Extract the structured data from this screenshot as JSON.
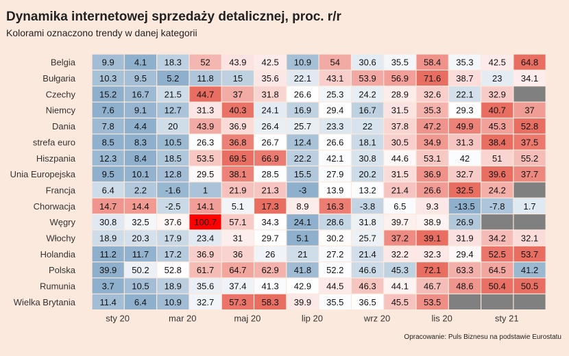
{
  "title": "Dynamika internetowej sprzedaży detalicznej, proc. r/r",
  "subtitle": "Kolorami oznaczono trendy w danej kategorii",
  "source": "Opracowanie: Puls Biznesu na podstawie Eurostatu",
  "chart_data": {
    "type": "heatmap",
    "rows": [
      "Belgia",
      "Bułgaria",
      "Czechy",
      "Niemcy",
      "Dania",
      "strefa euro",
      "Hiszpania",
      "Unia Europejska",
      "Francja",
      "Chorwacja",
      "Węgry",
      "Włochy",
      "Holandia",
      "Polska",
      "Rumunia",
      "Wielka Brytania"
    ],
    "x_tick_labels": [
      {
        "label": "sty 20",
        "column": 0
      },
      {
        "label": "mar 20",
        "column": 2
      },
      {
        "label": "maj 20",
        "column": 4
      },
      {
        "label": "lip 20",
        "column": 6
      },
      {
        "label": "wrz 20",
        "column": 8
      },
      {
        "label": "lis 20",
        "column": 10
      },
      {
        "label": "sty 21",
        "column": 12
      }
    ],
    "values": [
      [
        9.9,
        4.1,
        18.3,
        52,
        43.9,
        42.5,
        10.9,
        54,
        30.6,
        35.5,
        58.4,
        35.3,
        42.5,
        64.8
      ],
      [
        10.3,
        9.5,
        5.2,
        11.8,
        15,
        35.6,
        22.1,
        43.1,
        53.9,
        56.9,
        71.6,
        38.7,
        23,
        34.1
      ],
      [
        15.2,
        16.7,
        21.5,
        44.7,
        37,
        31.8,
        26.6,
        25.3,
        24.2,
        28.9,
        32.6,
        22.1,
        32.9,
        null
      ],
      [
        7.6,
        9.1,
        12.7,
        31.3,
        40.3,
        24.1,
        16.9,
        29.4,
        16.7,
        31.5,
        35.3,
        29.3,
        40.7,
        37
      ],
      [
        7.8,
        4.4,
        20,
        43.9,
        36.9,
        26.4,
        25.7,
        23.3,
        22,
        37.8,
        47.2,
        49.9,
        45.3,
        52.8
      ],
      [
        8.5,
        8.3,
        10.5,
        26.3,
        36.8,
        26.7,
        12.4,
        26.6,
        18.1,
        30.5,
        34.9,
        31.3,
        38.4,
        37.5
      ],
      [
        12.3,
        8.4,
        18.5,
        53.5,
        69.5,
        66.9,
        22.2,
        42.1,
        30.8,
        44.6,
        53.1,
        42,
        51,
        55.2
      ],
      [
        9.5,
        10.1,
        12.8,
        29.5,
        38.1,
        28.5,
        15.5,
        27.9,
        20.2,
        31.5,
        36.9,
        32.7,
        39.6,
        37.7
      ],
      [
        6.4,
        2.2,
        -1.6,
        1,
        21.9,
        21.3,
        -3,
        13.9,
        13.2,
        21.4,
        26.6,
        32.5,
        24.2,
        null
      ],
      [
        14.7,
        14.4,
        -2.5,
        14.1,
        5.1,
        17.3,
        8.9,
        16.3,
        -3.8,
        6.5,
        9.3,
        -13.5,
        -7.8,
        1.7
      ],
      [
        30.8,
        32.5,
        37.6,
        100.7,
        57.1,
        34.3,
        24.1,
        28.6,
        31.8,
        39.7,
        38.9,
        26.9,
        null,
        null
      ],
      [
        18.9,
        20.3,
        17.9,
        23.4,
        31,
        29.7,
        5.1,
        30.2,
        25.7,
        37.2,
        39.1,
        31.9,
        34.2,
        32.1
      ],
      [
        11.2,
        11.7,
        17.2,
        36.9,
        36,
        26,
        21,
        27.2,
        21.4,
        32.2,
        32.3,
        29.4,
        52.5,
        53.7
      ],
      [
        39.9,
        50.2,
        52.8,
        61.7,
        64.7,
        62.9,
        41.8,
        52.2,
        46.6,
        45.3,
        72.1,
        63.3,
        64.5,
        41.2
      ],
      [
        3.7,
        10.5,
        18.9,
        35.6,
        37.4,
        41.3,
        42.9,
        44.5,
        46.3,
        44.1,
        46.7,
        48.6,
        50.4,
        50.5
      ],
      [
        11.4,
        6.4,
        10.9,
        32.7,
        57.3,
        58.3,
        39.9,
        35.5,
        36.5,
        45.5,
        53.5,
        null,
        null,
        null
      ]
    ],
    "missing_color": "#808080",
    "low_color": "#8fb0cc",
    "mid_color": "#ffffff",
    "high_color": "#e8665a",
    "extreme_color": "#ff0000",
    "grid": false,
    "legend": "none"
  }
}
